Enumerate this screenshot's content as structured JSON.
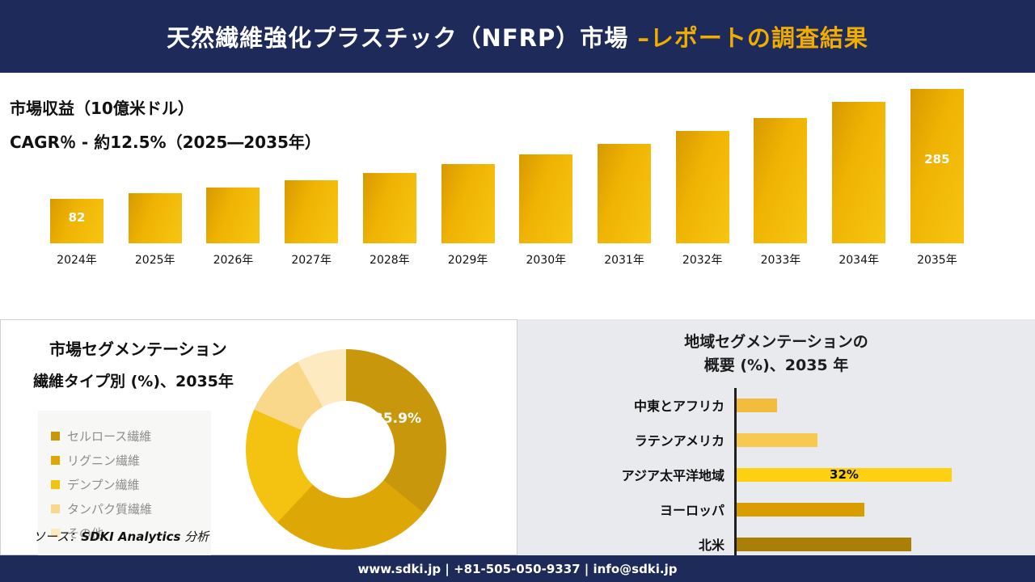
{
  "header": {
    "title_main": "天然繊維強化プラスチック（NFRP）市場 ",
    "title_accent": "–レポートの調査結果"
  },
  "revenue": {
    "metric_label": "市場収益（10億米ドル）",
    "cagr_label": "CAGR％ - 約12.5%（2025―2035年）"
  },
  "chart_data": [
    {
      "type": "bar",
      "title": "市場収益（10億米ドル）",
      "xlabel": "年",
      "ylabel": "市場収益（10億米ドル）",
      "cagr": "約12.5%（2025―2035年）",
      "categories": [
        "2024年",
        "2025年",
        "2026年",
        "2027年",
        "2028年",
        "2029年",
        "2030年",
        "2031年",
        "2032年",
        "2033年",
        "2034年",
        "2035年"
      ],
      "values": [
        82,
        92,
        103,
        116,
        130,
        146,
        164,
        184,
        207,
        232,
        261,
        285
      ],
      "data_labels": {
        "2024年": "82",
        "2035年": "285"
      },
      "bar_color": "#efb303",
      "grid": false,
      "legend": false
    },
    {
      "type": "pie",
      "donut": true,
      "title": "市場セグメンテーション 繊維タイプ別 (%)、2035年",
      "labels": [
        "セルロース繊維",
        "リグニン繊維",
        "デンプン繊維",
        "タンパク質繊維",
        "その他"
      ],
      "values": [
        35.9,
        26.1,
        19.5,
        10.5,
        8.0
      ],
      "colors": [
        "#c9970b",
        "#dda705",
        "#f4c211",
        "#fad88b",
        "#fdeac1"
      ],
      "visible_label": "35.9%",
      "legend_position": "left"
    },
    {
      "type": "bar",
      "orientation": "horizontal",
      "title": "地域セグメンテーションの概要 (%)、2035 年",
      "categories": [
        "中東とアフリカ",
        "ラテンアメリカ",
        "アジア太平洋地域",
        "ヨーロッパ",
        "北米"
      ],
      "values": [
        6,
        12,
        32,
        19,
        26
      ],
      "colors": [
        "#f2bc3f",
        "#f7c94e",
        "#fdd012",
        "#d99d00",
        "#aa7f08"
      ],
      "value_labels": {
        "アジア太平洋地域": "32%"
      },
      "grid": false,
      "legend": false
    }
  ],
  "segmentation": {
    "title_line1": "市場セグメンテーション",
    "title_line2": "繊維タイプ別 (%)、2035年",
    "donut_label": "35.9%",
    "source_prefix": "ソース：",
    "source_brand": "SDKI Analytics",
    "source_suffix": " 分析"
  },
  "region": {
    "title_line1": "地域セグメンテーションの",
    "title_line2": "概要 (%)、2035 年"
  },
  "footer": {
    "contact": "www.sdki.jp | +81-505-050-9337 | info@sdki.jp"
  },
  "colors": {
    "navy": "#1e2a5a",
    "accent_gold": "#f0ad00",
    "panel_gray": "#e9eaee"
  }
}
